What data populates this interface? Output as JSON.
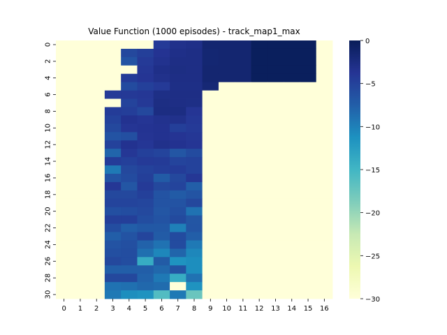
{
  "chart_data": {
    "type": "heatmap",
    "title": "Value Function (1000 episodes) - track_map1_max",
    "xlabel": "",
    "ylabel": "",
    "colormap": "YlGnBu",
    "colorbar": {
      "min": -30,
      "max": 0,
      "ticks": [
        0,
        -5,
        -10,
        -15,
        -20,
        -25,
        -30
      ]
    },
    "x_tick_labels": [
      "0",
      "1",
      "2",
      "3",
      "4",
      "5",
      "6",
      "7",
      "8",
      "9",
      "10",
      "11",
      "12",
      "13",
      "14",
      "15",
      "16"
    ],
    "y_tick_labels": [
      "0",
      "2",
      "4",
      "6",
      "8",
      "10",
      "12",
      "14",
      "16",
      "18",
      "20",
      "22",
      "24",
      "26",
      "28",
      "30"
    ],
    "n_rows": 31,
    "n_cols": 17,
    "note_cells": "null = minimum value (-30, pale yellow)",
    "values": [
      [
        null,
        null,
        null,
        null,
        null,
        null,
        -4.3,
        -3.2,
        -3,
        -1.5,
        -1.5,
        -1.5,
        -0.3,
        -0.3,
        -0.3,
        -0.3,
        null
      ],
      [
        null,
        null,
        null,
        null,
        -5.5,
        -4.7,
        -3.6,
        -3,
        -2.8,
        -1.6,
        -1.5,
        -1.5,
        -0.3,
        -0.3,
        -0.3,
        -0.3,
        null
      ],
      [
        null,
        null,
        null,
        null,
        -6.5,
        -4.3,
        -3.4,
        -2.8,
        -2.8,
        -1.6,
        -1.5,
        -1.5,
        -0.3,
        -0.3,
        -0.3,
        -0.3,
        null
      ],
      [
        null,
        null,
        null,
        null,
        null,
        -4,
        -3,
        -2.7,
        -2.8,
        -1.5,
        -1.5,
        -1.5,
        -0.3,
        -0.3,
        -0.3,
        -0.3,
        null
      ],
      [
        null,
        null,
        null,
        null,
        -4.4,
        -3.8,
        -3.2,
        -2.8,
        -2.8,
        -1.5,
        -1.5,
        -1.5,
        -0.3,
        -0.3,
        -0.3,
        -0.3,
        null
      ],
      [
        null,
        null,
        null,
        null,
        -5.8,
        -4.8,
        -4.3,
        -2.9,
        -2.9,
        -1.8,
        null,
        null,
        null,
        null,
        null,
        null,
        null
      ],
      [
        null,
        null,
        null,
        -4.3,
        -4.2,
        -4,
        -2.9,
        -2.8,
        -2.8,
        null,
        null,
        null,
        null,
        null,
        null,
        null,
        null
      ],
      [
        null,
        null,
        null,
        null,
        -5.1,
        -4.2,
        -2.7,
        -2.8,
        -2.9,
        null,
        null,
        null,
        null,
        null,
        null,
        null,
        null
      ],
      [
        null,
        null,
        null,
        -4.5,
        -4.6,
        -5.5,
        -2.6,
        -2.6,
        -3.8,
        null,
        null,
        null,
        null,
        null,
        null,
        null,
        null
      ],
      [
        null,
        null,
        null,
        -5,
        -3.5,
        -3.8,
        -3.4,
        -3.2,
        -4.1,
        null,
        null,
        null,
        null,
        null,
        null,
        null,
        null
      ],
      [
        null,
        null,
        null,
        -5.5,
        -3.8,
        -3.6,
        -3.5,
        -4.7,
        -4.3,
        null,
        null,
        null,
        null,
        null,
        null,
        null,
        null
      ],
      [
        null,
        null,
        null,
        -6.5,
        -6.2,
        -3.7,
        -3.5,
        -3.7,
        -4,
        null,
        null,
        null,
        null,
        null,
        null,
        null,
        null
      ],
      [
        null,
        null,
        null,
        -5,
        -3.5,
        -3.9,
        -3.2,
        -3.5,
        -3.8,
        null,
        null,
        null,
        null,
        null,
        null,
        null,
        null
      ],
      [
        null,
        null,
        null,
        -8,
        -4,
        -4.8,
        -5.2,
        -6.8,
        -5.8,
        null,
        null,
        null,
        null,
        null,
        null,
        null,
        null
      ],
      [
        null,
        null,
        null,
        -4.5,
        -4.8,
        -4.3,
        -4.4,
        -5.2,
        -5,
        null,
        null,
        null,
        null,
        null,
        null,
        null,
        null
      ],
      [
        null,
        null,
        null,
        -9.5,
        -5.5,
        -5,
        -4.6,
        -4.5,
        -5,
        null,
        null,
        null,
        null,
        null,
        null,
        null,
        null
      ],
      [
        null,
        null,
        null,
        -6.5,
        -5.8,
        -4.7,
        -7.2,
        -5.5,
        -4,
        null,
        null,
        null,
        null,
        null,
        null,
        null,
        null
      ],
      [
        null,
        null,
        null,
        -4,
        -6.8,
        -4.3,
        -5.5,
        -5.2,
        -7.5,
        null,
        null,
        null,
        null,
        null,
        null,
        null,
        null
      ],
      [
        null,
        null,
        null,
        -5.5,
        -5.5,
        -4.8,
        -6.5,
        -7.2,
        -6.6,
        null,
        null,
        null,
        null,
        null,
        null,
        null,
        null
      ],
      [
        null,
        null,
        null,
        -5.2,
        -5.2,
        -5.4,
        -6.5,
        -6.5,
        -5.5,
        null,
        null,
        null,
        null,
        null,
        null,
        null,
        null
      ],
      [
        null,
        null,
        null,
        -6.2,
        -6,
        -5.6,
        -6.8,
        -6.2,
        -9,
        null,
        null,
        null,
        null,
        null,
        null,
        null,
        null
      ],
      [
        null,
        null,
        null,
        -4.7,
        -4.7,
        -6,
        -6.5,
        -5.7,
        -6.8,
        null,
        null,
        null,
        null,
        null,
        null,
        null,
        null
      ],
      [
        null,
        null,
        null,
        -6,
        -7.5,
        -7,
        -7,
        -10,
        -6.7,
        null,
        null,
        null,
        null,
        null,
        null,
        null,
        null
      ],
      [
        null,
        null,
        null,
        -7.5,
        -6.5,
        -5.3,
        -7.2,
        -5.8,
        -7.5,
        null,
        null,
        null,
        null,
        null,
        null,
        null,
        null
      ],
      [
        null,
        null,
        null,
        -6.5,
        -6.2,
        -7.8,
        -9,
        -5.8,
        -9.5,
        null,
        null,
        null,
        null,
        null,
        null,
        null,
        null
      ],
      [
        null,
        null,
        null,
        -6.2,
        -6,
        -8.8,
        -10.5,
        -8,
        -10.5,
        null,
        null,
        null,
        null,
        null,
        null,
        null,
        null
      ],
      [
        null,
        null,
        null,
        -5.5,
        -6,
        -14,
        -7.2,
        -11.5,
        -11,
        null,
        null,
        null,
        null,
        null,
        null,
        null,
        null
      ],
      [
        null,
        null,
        null,
        -7.5,
        -7.5,
        -7.5,
        -8.2,
        -6.5,
        -11,
        null,
        null,
        null,
        null,
        null,
        null,
        null,
        null
      ],
      [
        null,
        null,
        null,
        -5.5,
        -5.5,
        -7.8,
        -9.5,
        -14,
        -9,
        null,
        null,
        null,
        null,
        null,
        null,
        null,
        null
      ],
      [
        null,
        null,
        null,
        -9,
        -8.8,
        -8.2,
        -8.5,
        null,
        -11.5,
        null,
        null,
        null,
        null,
        null,
        null,
        null,
        null
      ],
      [
        null,
        null,
        null,
        -9.5,
        -11,
        -11.5,
        -16,
        -9.5,
        -17.5,
        null,
        null,
        null,
        null,
        null,
        null,
        null,
        null
      ]
    ]
  }
}
